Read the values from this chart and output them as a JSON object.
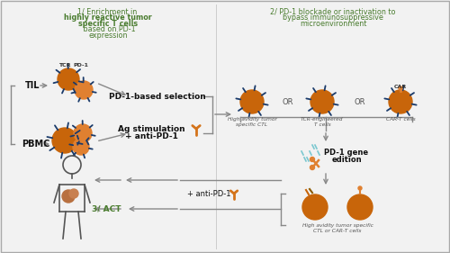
{
  "bg_color": "#f2f2f2",
  "title1_line1": "1/ Enrichment in ",
  "title1_bold": "highly reactive tumor",
  "title1_line2": "specific T cells",
  "title1_rest": " based on PD-1",
  "title1_line3": "expression",
  "title2_line1": "2/ PD-1 blockade or inactivation to",
  "title2_line2": "bypass immunosuppressive",
  "title2_line3": "microenvironment",
  "title_color": "#4a7c2f",
  "cell_color_dark": "#c8650a",
  "cell_color_light": "#e08030",
  "arm_color": "#1a3a6a",
  "arrow_color": "#888888",
  "text_dark": "#111111",
  "text_gray": "#555555",
  "act_color": "#4a7c2f",
  "antibody_color": "#d4731a",
  "border_color": "#aaaaaa",
  "scissors_color": "#e08030",
  "dna_color": "#7cc8d0"
}
